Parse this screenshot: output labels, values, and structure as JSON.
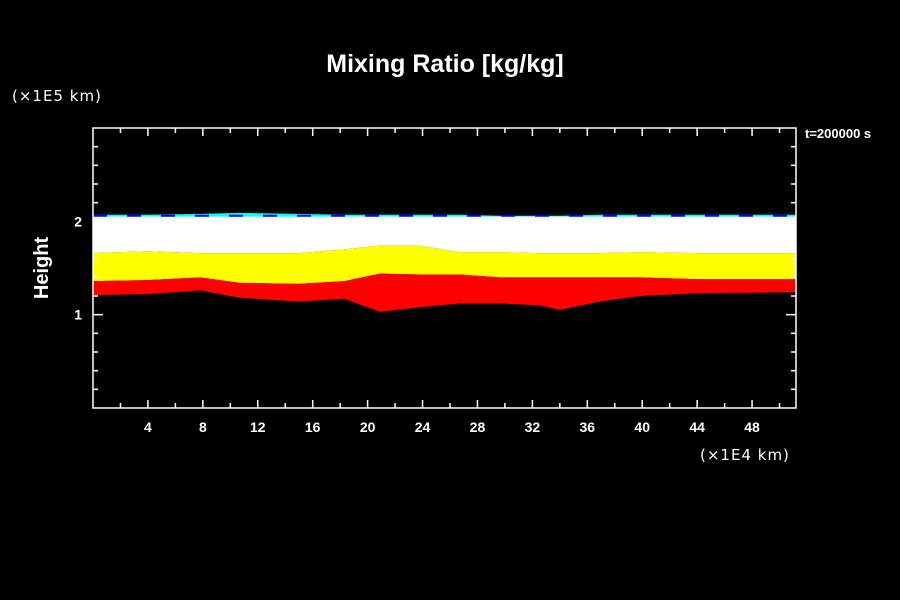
{
  "chart_data": {
    "type": "area",
    "title": "Mixing Ratio [kg/kg]",
    "xlabel": "(×1E4 km)",
    "ylabel": "Height",
    "yunit": "(×1E5 km)",
    "annotation": "t=200000 s",
    "xlim": [
      0,
      51.2
    ],
    "ylim": [
      0,
      3
    ],
    "x_ticks": [
      4,
      8,
      12,
      16,
      20,
      24,
      28,
      32,
      36,
      40,
      44,
      48
    ],
    "x_tick_labels": [
      "4",
      "8",
      "12",
      "16",
      "20",
      "24",
      "28",
      "32",
      "36",
      "40",
      "44",
      "48"
    ],
    "y_ticks": [
      1,
      2
    ],
    "y_tick_labels": [
      "1",
      "2"
    ],
    "x": [
      0,
      4,
      7.8,
      10.7,
      15,
      18.3,
      20.9,
      23.8,
      26.7,
      29.6,
      32.5,
      34,
      36.9,
      39.8,
      44.1,
      51.2
    ],
    "bands": [
      {
        "name": "fringe",
        "color": "#00ffff",
        "lower": [
          2.03,
          2.03,
          2.03,
          2.03,
          2.03,
          2.03,
          2.03,
          2.03,
          2.03,
          2.03,
          2.03,
          2.03,
          2.03,
          2.03,
          2.03,
          2.03
        ],
        "upper": [
          2.07,
          2.07,
          2.08,
          2.09,
          2.08,
          2.07,
          2.07,
          2.07,
          2.07,
          2.06,
          2.06,
          2.06,
          2.07,
          2.07,
          2.07,
          2.07
        ]
      },
      {
        "name": "white",
        "color": "#ffffff",
        "lower": [
          1.66,
          1.68,
          1.66,
          1.66,
          1.66,
          1.7,
          1.74,
          1.74,
          1.67,
          1.67,
          1.66,
          1.66,
          1.66,
          1.67,
          1.66,
          1.66
        ],
        "upper": [
          2.05,
          2.05,
          2.05,
          2.05,
          2.05,
          2.05,
          2.05,
          2.05,
          2.05,
          2.05,
          2.05,
          2.05,
          2.05,
          2.05,
          2.05,
          2.05
        ]
      },
      {
        "name": "yellow",
        "color": "#ffff00",
        "lower": [
          1.36,
          1.37,
          1.4,
          1.34,
          1.33,
          1.36,
          1.44,
          1.43,
          1.43,
          1.4,
          1.4,
          1.4,
          1.4,
          1.4,
          1.38,
          1.38
        ],
        "upper": [
          1.66,
          1.68,
          1.66,
          1.66,
          1.66,
          1.7,
          1.74,
          1.74,
          1.67,
          1.67,
          1.66,
          1.66,
          1.66,
          1.67,
          1.66,
          1.66
        ]
      },
      {
        "name": "red",
        "color": "#ff0000",
        "lower": [
          1.21,
          1.22,
          1.26,
          1.18,
          1.14,
          1.17,
          1.03,
          1.08,
          1.12,
          1.12,
          1.1,
          1.05,
          1.14,
          1.2,
          1.23,
          1.24
        ],
        "upper": [
          1.36,
          1.37,
          1.4,
          1.34,
          1.33,
          1.36,
          1.44,
          1.43,
          1.43,
          1.4,
          1.4,
          1.4,
          1.4,
          1.4,
          1.38,
          1.38
        ]
      }
    ],
    "grid": false
  }
}
